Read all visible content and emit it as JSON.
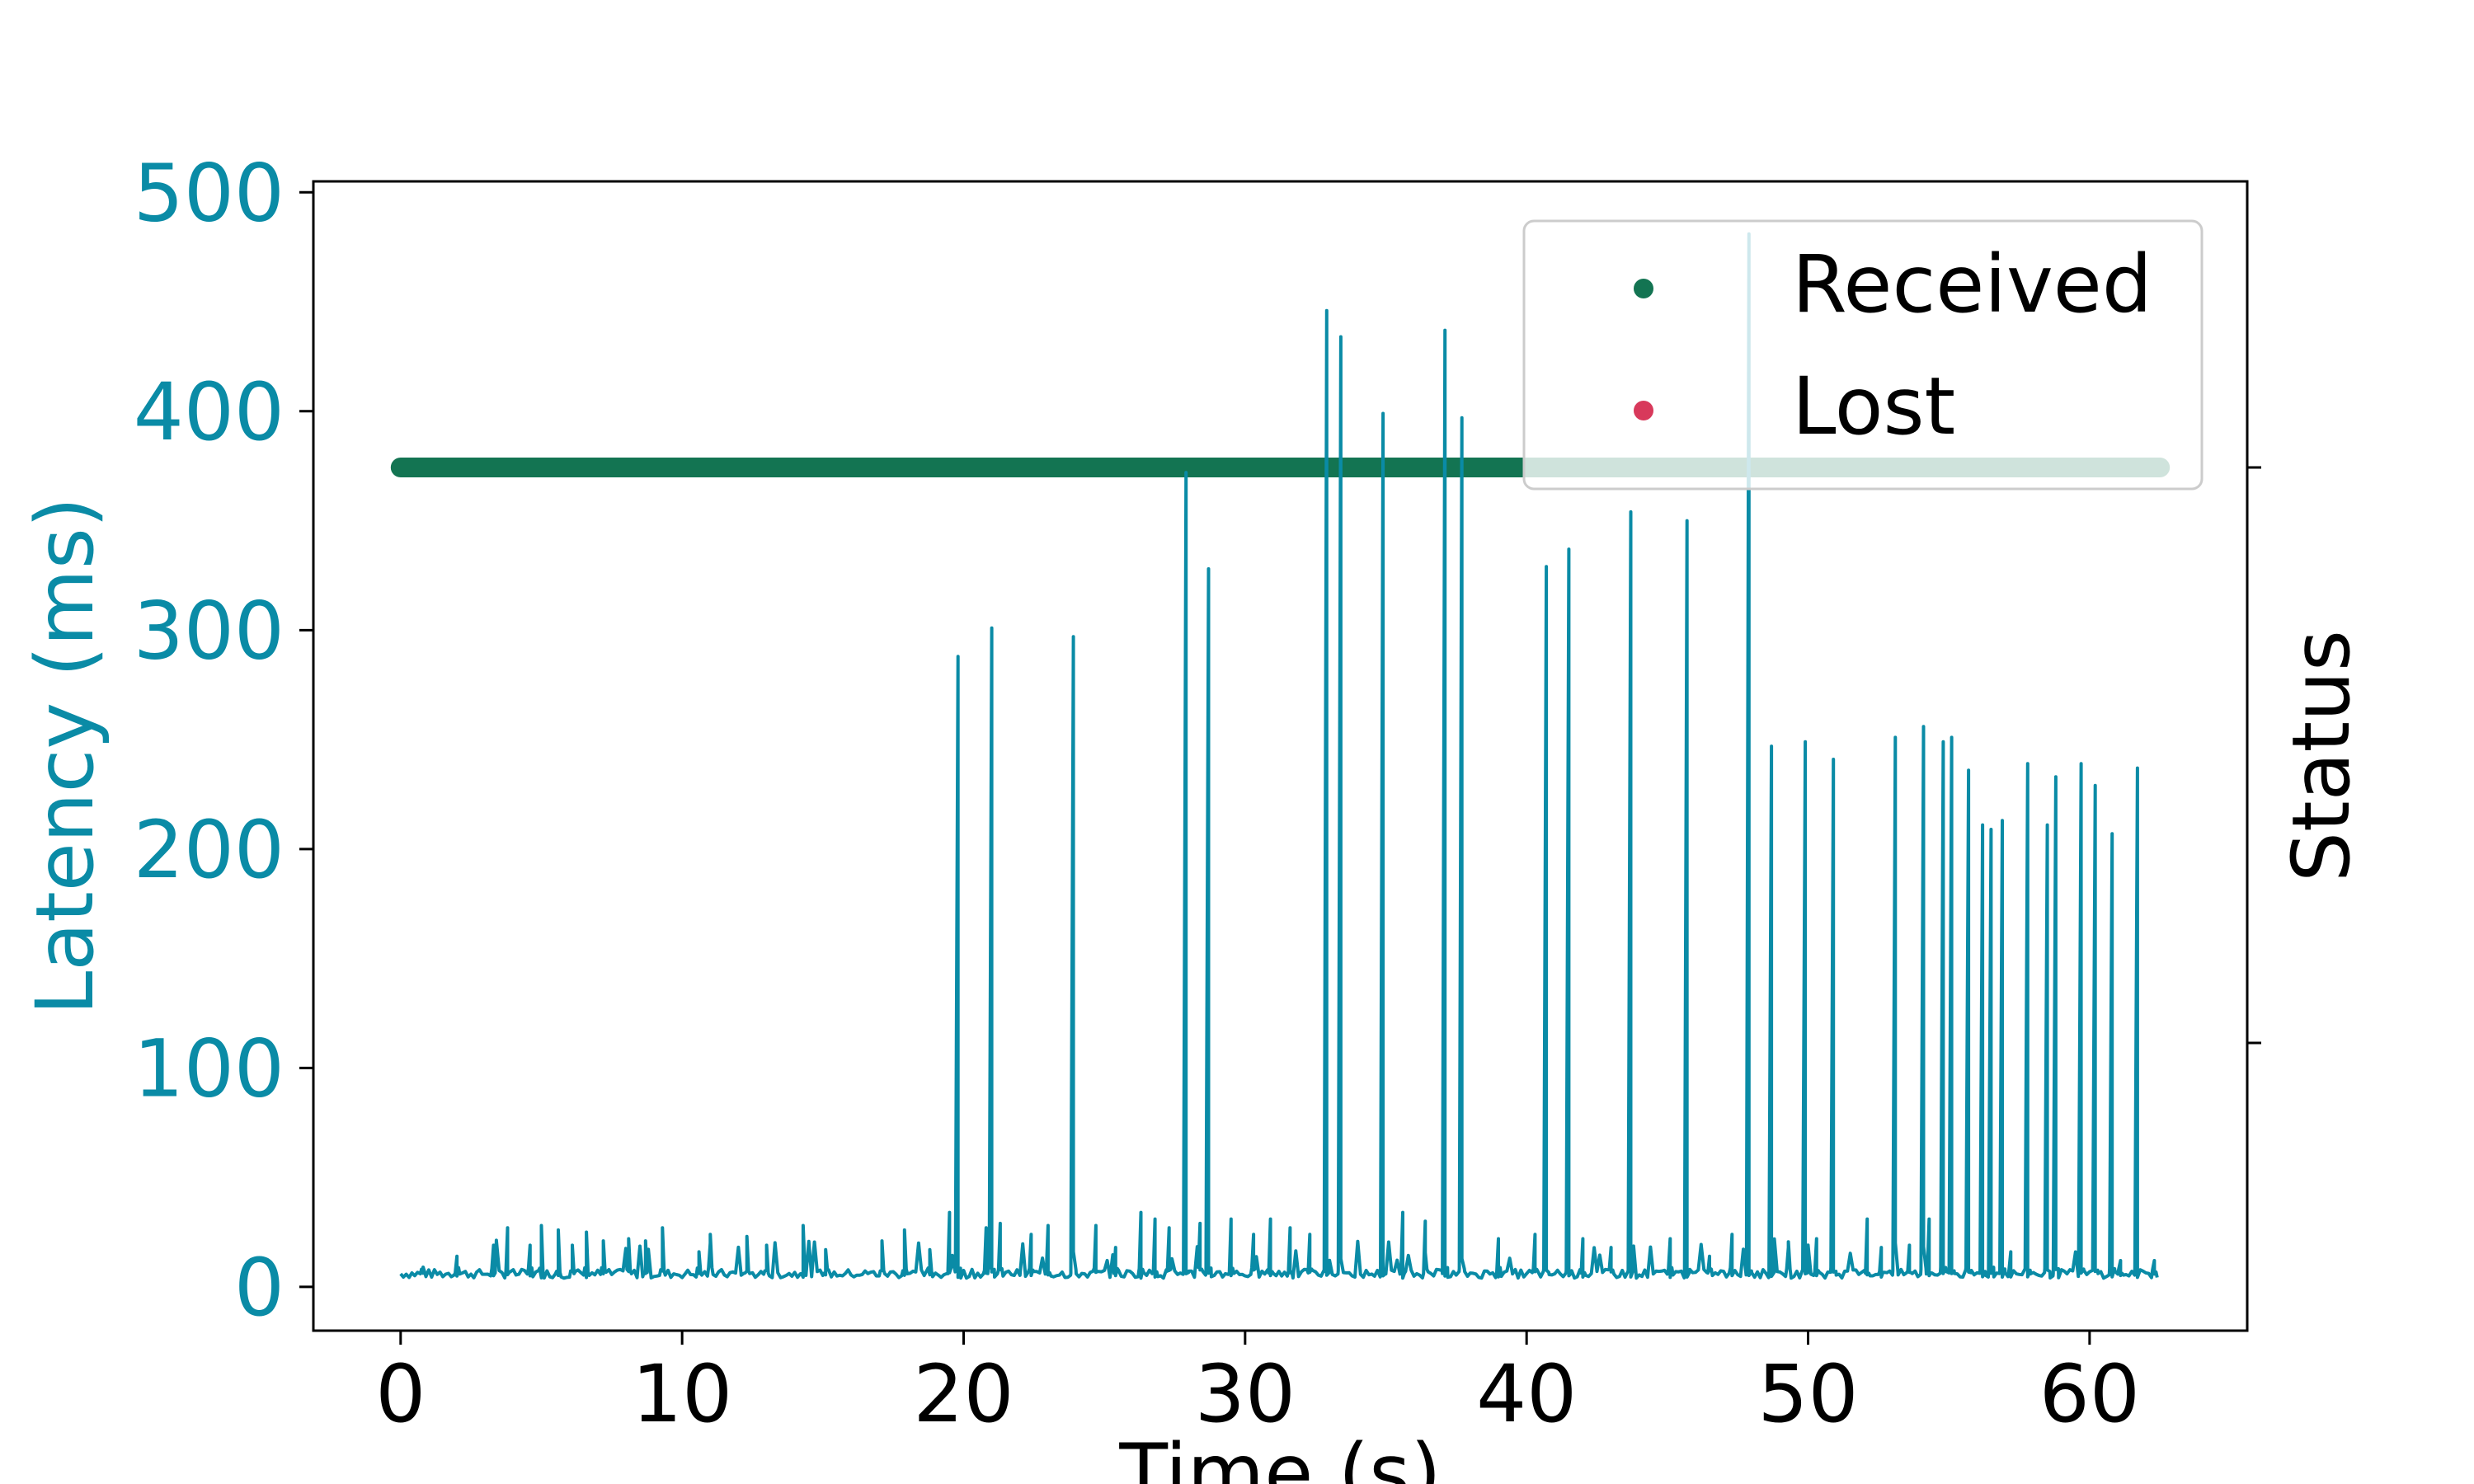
{
  "chart_data": {
    "type": "line",
    "xlabel": "Time (s)",
    "ylabel": "Latency (ms)",
    "ylabel_right": "Status",
    "xlim": [
      -3.1,
      65.6
    ],
    "ylim": [
      -20,
      505
    ],
    "xticks": [
      0,
      10,
      20,
      30,
      40,
      50,
      60
    ],
    "yticks": [
      0,
      100,
      200,
      300,
      400,
      500
    ],
    "colors": {
      "latency": "#0a8ba6",
      "received": "#137452",
      "lost": "#d8395b",
      "axes": "#000000"
    },
    "legend": {
      "placement": "top-right",
      "entries": [
        {
          "label": "Received",
          "color": "#137452"
        },
        {
          "label": "Lost",
          "color": "#d8395b"
        }
      ]
    },
    "series": [
      {
        "type": "line",
        "x_range": [
          0,
          62.5
        ],
        "baseline_ms": 6,
        "spikes": [
          {
            "t": 19.8,
            "ms": 288
          },
          {
            "t": 21.0,
            "ms": 301
          },
          {
            "t": 23.9,
            "ms": 297
          },
          {
            "t": 27.9,
            "ms": 372
          },
          {
            "t": 28.7,
            "ms": 328
          },
          {
            "t": 32.9,
            "ms": 446
          },
          {
            "t": 33.4,
            "ms": 434
          },
          {
            "t": 34.9,
            "ms": 399
          },
          {
            "t": 37.1,
            "ms": 437
          },
          {
            "t": 37.7,
            "ms": 397
          },
          {
            "t": 40.7,
            "ms": 329
          },
          {
            "t": 41.5,
            "ms": 337
          },
          {
            "t": 43.7,
            "ms": 354
          },
          {
            "t": 45.7,
            "ms": 350
          },
          {
            "t": 47.9,
            "ms": 481
          },
          {
            "t": 48.7,
            "ms": 247
          },
          {
            "t": 49.9,
            "ms": 249
          },
          {
            "t": 50.9,
            "ms": 241
          },
          {
            "t": 53.1,
            "ms": 251
          },
          {
            "t": 54.1,
            "ms": 256
          },
          {
            "t": 54.8,
            "ms": 249
          },
          {
            "t": 55.1,
            "ms": 251
          },
          {
            "t": 55.7,
            "ms": 236
          },
          {
            "t": 56.2,
            "ms": 211
          },
          {
            "t": 56.5,
            "ms": 209
          },
          {
            "t": 56.9,
            "ms": 213
          },
          {
            "t": 57.8,
            "ms": 239
          },
          {
            "t": 58.5,
            "ms": 211
          },
          {
            "t": 58.8,
            "ms": 233
          },
          {
            "t": 59.7,
            "ms": 239
          },
          {
            "t": 60.2,
            "ms": 229
          },
          {
            "t": 60.8,
            "ms": 207
          },
          {
            "t": 61.7,
            "ms": 237
          }
        ],
        "small_bumps": [
          {
            "t": 0.8,
            "ms": 9
          },
          {
            "t": 2.0,
            "ms": 14
          },
          {
            "t": 3.3,
            "ms": 19
          },
          {
            "t": 3.8,
            "ms": 27
          },
          {
            "t": 4.6,
            "ms": 19
          },
          {
            "t": 5.0,
            "ms": 28
          },
          {
            "t": 5.6,
            "ms": 26
          },
          {
            "t": 6.1,
            "ms": 19
          },
          {
            "t": 6.6,
            "ms": 25
          },
          {
            "t": 7.2,
            "ms": 21
          },
          {
            "t": 8.1,
            "ms": 22
          },
          {
            "t": 8.7,
            "ms": 21
          },
          {
            "t": 9.3,
            "ms": 27
          },
          {
            "t": 10.6,
            "ms": 16
          },
          {
            "t": 11.0,
            "ms": 24
          },
          {
            "t": 12.3,
            "ms": 23
          },
          {
            "t": 13.0,
            "ms": 19
          },
          {
            "t": 14.3,
            "ms": 28
          },
          {
            "t": 15.1,
            "ms": 17
          },
          {
            "t": 17.1,
            "ms": 21
          },
          {
            "t": 17.9,
            "ms": 26
          },
          {
            "t": 18.8,
            "ms": 17
          },
          {
            "t": 19.5,
            "ms": 34
          },
          {
            "t": 20.8,
            "ms": 27
          },
          {
            "t": 21.3,
            "ms": 29
          },
          {
            "t": 22.4,
            "ms": 24
          },
          {
            "t": 23.0,
            "ms": 28
          },
          {
            "t": 24.7,
            "ms": 28
          },
          {
            "t": 25.4,
            "ms": 18
          },
          {
            "t": 26.3,
            "ms": 34
          },
          {
            "t": 26.8,
            "ms": 31
          },
          {
            "t": 27.3,
            "ms": 27
          },
          {
            "t": 28.4,
            "ms": 29
          },
          {
            "t": 29.5,
            "ms": 31
          },
          {
            "t": 30.3,
            "ms": 24
          },
          {
            "t": 30.9,
            "ms": 31
          },
          {
            "t": 31.6,
            "ms": 27
          },
          {
            "t": 32.3,
            "ms": 24
          },
          {
            "t": 35.6,
            "ms": 34
          },
          {
            "t": 36.4,
            "ms": 30
          },
          {
            "t": 39.0,
            "ms": 22
          },
          {
            "t": 40.3,
            "ms": 24
          },
          {
            "t": 42.0,
            "ms": 22
          },
          {
            "t": 43.0,
            "ms": 18
          },
          {
            "t": 45.1,
            "ms": 22
          },
          {
            "t": 46.5,
            "ms": 14
          },
          {
            "t": 47.3,
            "ms": 24
          },
          {
            "t": 49.3,
            "ms": 18
          },
          {
            "t": 50.3,
            "ms": 22
          },
          {
            "t": 52.1,
            "ms": 31
          },
          {
            "t": 52.6,
            "ms": 18
          },
          {
            "t": 53.6,
            "ms": 19
          },
          {
            "t": 54.3,
            "ms": 31
          },
          {
            "t": 57.2,
            "ms": 16
          },
          {
            "t": 61.1,
            "ms": 12
          },
          {
            "t": 62.3,
            "ms": 12
          }
        ]
      },
      {
        "name": "Received",
        "type": "scatter",
        "x_range": [
          0,
          62.5
        ],
        "status_level": "Received"
      }
    ]
  }
}
